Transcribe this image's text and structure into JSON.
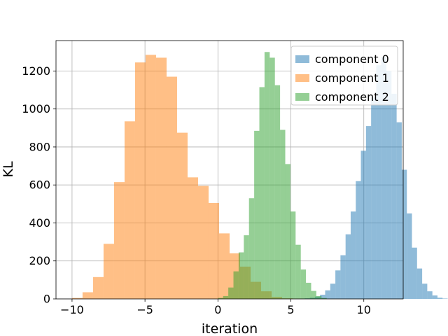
{
  "chart_data": {
    "type": "histogram",
    "xlabel": "iteration",
    "ylabel": "KL",
    "xlim": [
      -11.1,
      12.7
    ],
    "ylim": [
      0,
      1360
    ],
    "xticks": [
      -10,
      -5,
      0,
      5,
      10
    ],
    "xtick_labels": [
      "−10",
      "−5",
      "0",
      "5",
      "10"
    ],
    "yticks": [
      0,
      200,
      400,
      600,
      800,
      1000,
      1200
    ],
    "ytick_labels": [
      "0",
      "200",
      "400",
      "600",
      "800",
      "1000",
      "1200"
    ],
    "grid": true,
    "legend_placement": "top-right",
    "bar_alpha": 0.5,
    "series": [
      {
        "name": "component 0",
        "color": "#1f77b4",
        "bin_start": 5.6,
        "bin_width": 0.35,
        "counts": [
          1,
          3,
          6,
          12,
          22,
          45,
          80,
          150,
          230,
          340,
          460,
          620,
          780,
          910,
          1060,
          1230,
          1275,
          1200,
          1080,
          930,
          680,
          450,
          270,
          160,
          80,
          40,
          18,
          6,
          2
        ]
      },
      {
        "name": "component 1",
        "color": "#ff7f0e",
        "bin_start": -10.0,
        "bin_width": 0.72,
        "counts": [
          5,
          35,
          115,
          290,
          615,
          935,
          1245,
          1285,
          1270,
          1170,
          875,
          640,
          595,
          505,
          345,
          240,
          170,
          90,
          40,
          10,
          3,
          1
        ]
      },
      {
        "name": "component 2",
        "color": "#2ca02c",
        "bin_start": 0.0,
        "bin_width": 0.355,
        "counts": [
          5,
          15,
          60,
          145,
          245,
          335,
          530,
          885,
          1115,
          1300,
          1270,
          1125,
          890,
          710,
          460,
          285,
          155,
          85,
          42,
          15,
          5
        ]
      }
    ]
  }
}
